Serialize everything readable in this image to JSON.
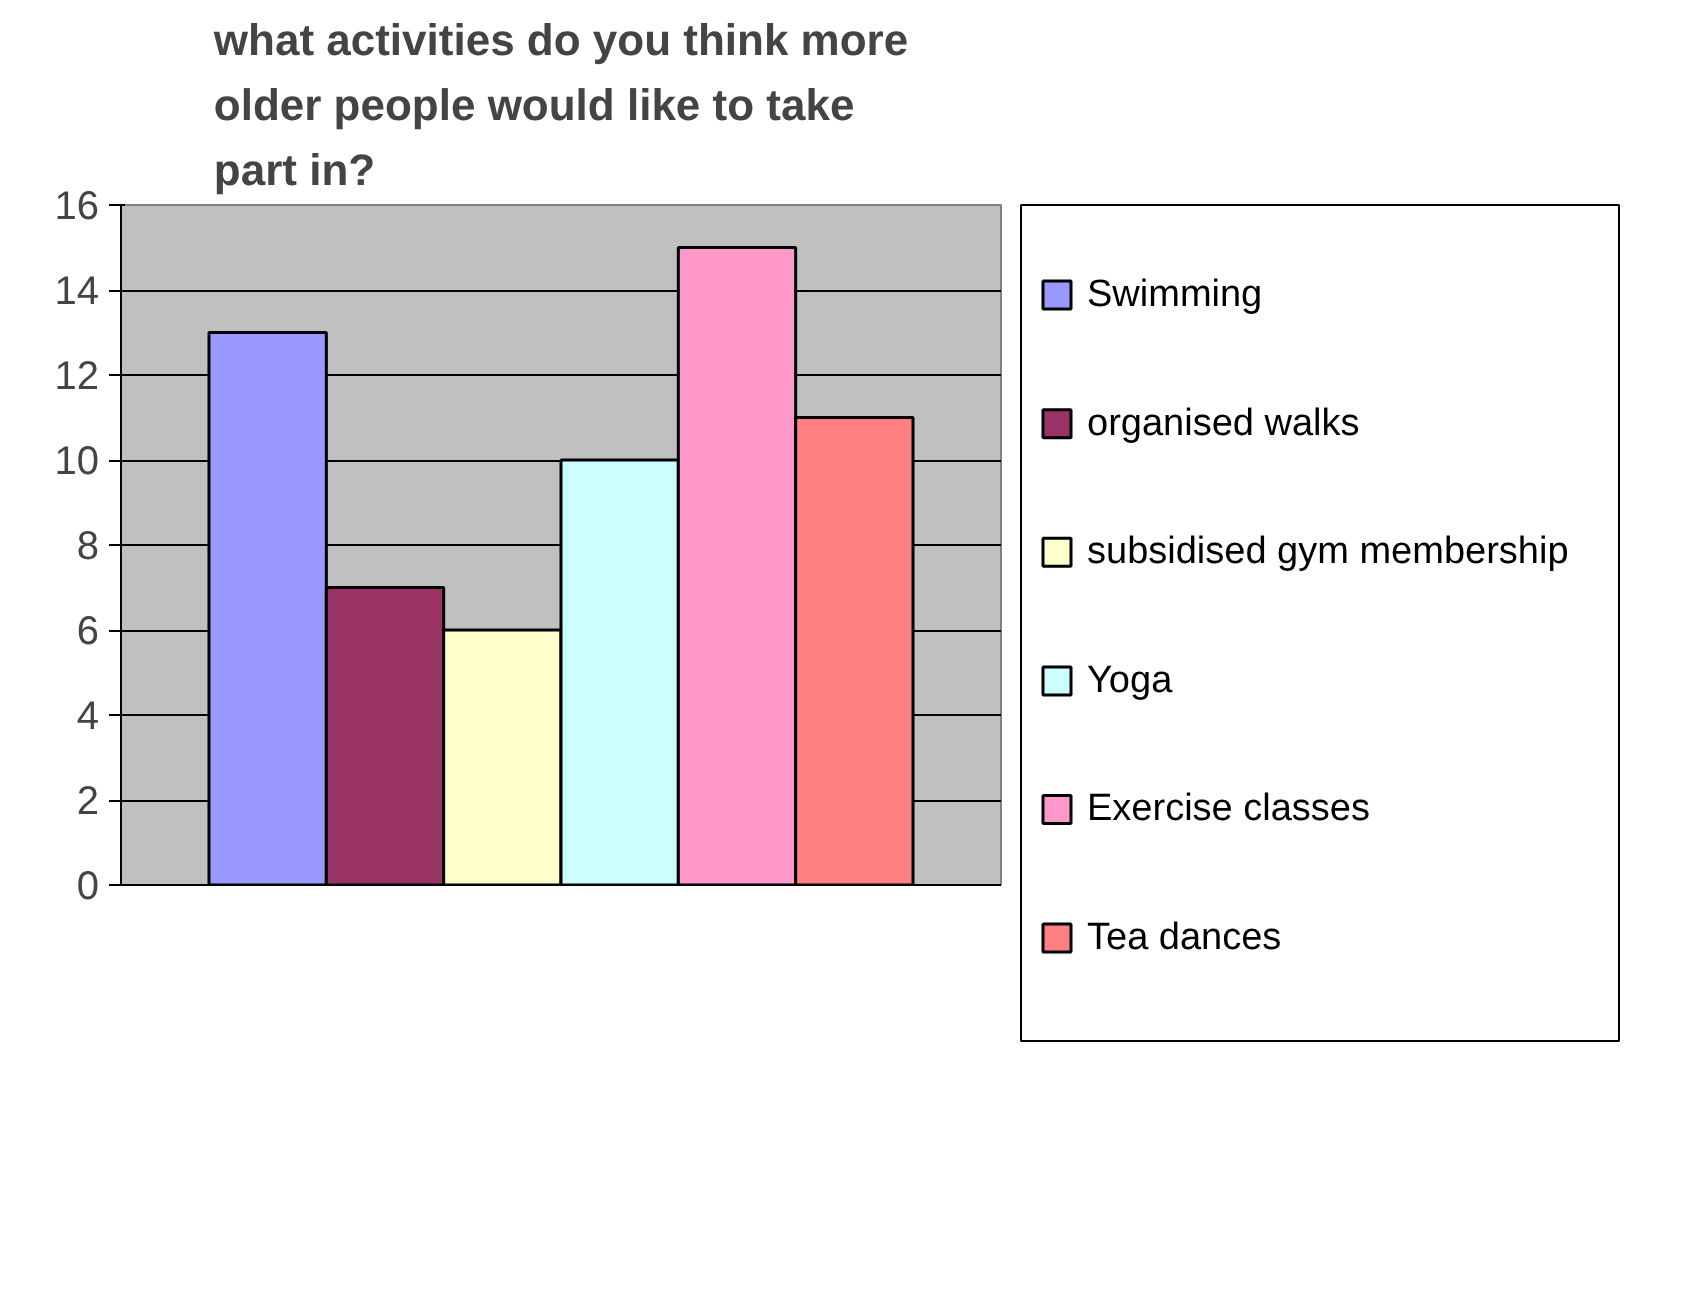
{
  "chart_data": {
    "type": "bar",
    "title": "what activities do you think more older people would like to take part in?",
    "categories": [
      null
    ],
    "series": [
      {
        "name": "Swimming",
        "color": "#9999ff",
        "values": [
          13
        ]
      },
      {
        "name": "organised walks",
        "color": "#993366",
        "values": [
          7
        ]
      },
      {
        "name": "subsidised gym membership",
        "color": "#ffffcc",
        "values": [
          6
        ]
      },
      {
        "name": "Yoga",
        "color": "#ccffff",
        "values": [
          10
        ]
      },
      {
        "name": "Exercise classes",
        "color": "#ff99cc",
        "values": [
          15
        ]
      },
      {
        "name": "Tea dances",
        "color": "#ff8080",
        "values": [
          11
        ]
      }
    ],
    "ylim": [
      0,
      16
    ],
    "yticks": [
      0,
      2,
      4,
      6,
      8,
      10,
      12,
      14,
      16
    ],
    "grid": "y",
    "legend": "right",
    "tick_labels": "y"
  }
}
